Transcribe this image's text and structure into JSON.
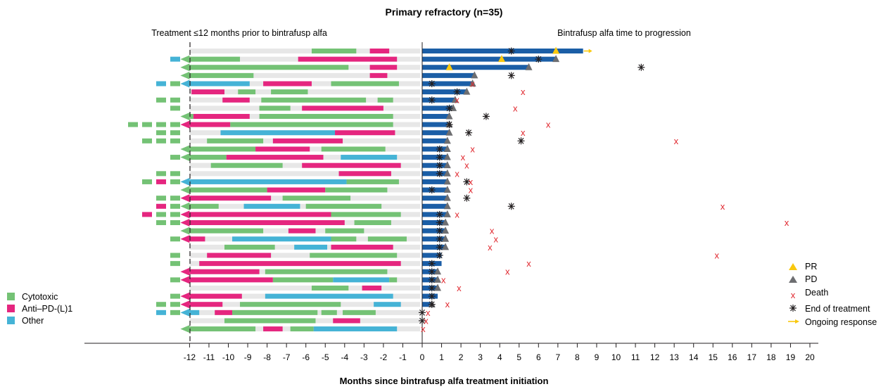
{
  "chart_data": {
    "type": "swimmer",
    "title": "Primary refractory (n=35)",
    "xlabel": "Months since bintrafusp alfa treatment initiation",
    "left_label": "Treatment ≤12 months prior to bintrafusp alfa",
    "right_label": "Bintrafusp alfa time to progression",
    "xlim": [
      -12,
      20
    ],
    "x_ticks": [
      "-12",
      "-11",
      "-10",
      "-9",
      "-8",
      "-7",
      "-6",
      "-5",
      "-4",
      "-3",
      "-2",
      "-1",
      "0",
      "1",
      "2",
      "3",
      "4",
      "5",
      "6",
      "7",
      "8",
      "9",
      "10",
      "11",
      "12",
      "13",
      "14",
      "15",
      "16",
      "17",
      "18",
      "19",
      "20"
    ],
    "colors": {
      "cytotoxic": "#74c275",
      "anti_pd": "#e5267f",
      "other": "#45b3d6",
      "bintrafusp": "#1b5ea6",
      "background_bar": "#e7e7e7",
      "pr": "#f9c80e",
      "pd": "#6d6e71",
      "death": "#e0262d",
      "end_of_treatment": "#231f20",
      "ongoing": "#f9c80e"
    },
    "legend": {
      "cytotoxic": "Cytotoxic",
      "anti_pd": "Anti–PD-(L)1",
      "other": "Other",
      "pr": "PR",
      "pd": "PD",
      "death": "Death",
      "eot": "End of treatment",
      "ongoing": "Ongoing response"
    },
    "patients": [
      {
        "prior": [
          [
            "C",
            -5.7,
            -3.4
          ],
          [
            "A",
            -2.7,
            -1.7
          ]
        ],
        "bg_start": null,
        "pre": [],
        "bf": 8.3,
        "pd": false,
        "pr": [
          6.9
        ],
        "eot": [
          4.6
        ],
        "death": null,
        "ongoing": true
      },
      {
        "prior": [
          [
            "C",
            -12,
            -9.4
          ],
          [
            "A",
            -6.4,
            -1.3
          ]
        ],
        "bg_start": -12,
        "pre": [
          "O"
        ],
        "bf": 6.9,
        "pd": true,
        "pr": [
          4.1
        ],
        "eot": [
          6.0
        ],
        "death": null,
        "ongoing": false
      },
      {
        "prior": [
          [
            "C",
            -12,
            -3.8
          ],
          [
            "A",
            -2.7,
            -1.3
          ]
        ],
        "bg_start": -12,
        "pre": [],
        "bf": 5.5,
        "pd": true,
        "pr": [
          1.4
        ],
        "eot": [
          11.3
        ],
        "death": null,
        "ongoing": false
      },
      {
        "prior": [
          [
            "C",
            -12,
            -8.7
          ],
          [
            "A",
            -2.7,
            -1.8
          ]
        ],
        "bg_start": -12,
        "pre": [],
        "bf": 2.7,
        "pd": true,
        "pr": [],
        "eot": [
          4.6
        ],
        "death": null,
        "ongoing": false
      },
      {
        "prior": [
          [
            "O",
            -12,
            -8.9
          ],
          [
            "A",
            -8.2,
            -5.7
          ],
          [
            "C",
            -4.7,
            -1.2
          ]
        ],
        "bg_start": -12,
        "pre": [
          "C",
          "O"
        ],
        "bf": 2.6,
        "pd": true,
        "pr": [],
        "eot": [
          0.5
        ],
        "death": 2.6,
        "ongoing": false
      },
      {
        "prior": [
          [
            "A",
            -11.9,
            -10.2
          ],
          [
            "C",
            -9.5,
            -8.6
          ],
          [
            "C",
            -7.8,
            -5.9
          ]
        ],
        "bg_start": -12,
        "pre": [],
        "bf": 2.3,
        "pd": true,
        "pr": [],
        "eot": [
          1.8
        ],
        "death": 5.2,
        "ongoing": false
      },
      {
        "prior": [
          [
            "A",
            -10.3,
            -8.9
          ],
          [
            "C",
            -8.3,
            -2.9
          ],
          [
            "C",
            -2.3,
            -1.5
          ]
        ],
        "bg_start": -12,
        "pre": [
          "C",
          "C"
        ],
        "bf": 1.7,
        "pd": true,
        "pr": [],
        "eot": [
          0.5
        ],
        "death": 1.8,
        "ongoing": false
      },
      {
        "prior": [
          [
            "C",
            -8.4,
            -6.8
          ],
          [
            "A",
            -6.2,
            -2.0
          ]
        ],
        "bg_start": -12,
        "pre": [
          "C"
        ],
        "bf": 1.6,
        "pd": true,
        "pr": [],
        "eot": [
          1.4
        ],
        "death": 4.8,
        "ongoing": false
      },
      {
        "prior": [
          [
            "C",
            -12,
            -11.8
          ],
          [
            "A",
            -11.8,
            -8.9
          ],
          [
            "C",
            -8.4,
            -1.5
          ]
        ],
        "bg_start": -12,
        "pre": [],
        "bf": 1.4,
        "pd": true,
        "pr": [],
        "eot": [
          3.3
        ],
        "death": null,
        "ongoing": false
      },
      {
        "prior": [
          [
            "A",
            -12,
            -9.9
          ],
          [
            "C",
            -9.9,
            -1.5
          ]
        ],
        "bg_start": -12,
        "pre": [
          "C",
          "C",
          "C",
          "C"
        ],
        "bf": 1.4,
        "pd": true,
        "pr": [],
        "eot": [
          1.4
        ],
        "death": 6.5,
        "ongoing": false
      },
      {
        "prior": [
          [
            "O",
            -10.4,
            -4.5
          ],
          [
            "A",
            -4.5,
            -1.4
          ]
        ],
        "bg_start": -12,
        "pre": [
          "C",
          "C"
        ],
        "bf": 1.4,
        "pd": true,
        "pr": [],
        "eot": [
          2.4
        ],
        "death": 5.2,
        "ongoing": false
      },
      {
        "prior": [
          [
            "C",
            -11.1,
            -8.2
          ],
          [
            "A",
            -7.7,
            -4.1
          ]
        ],
        "bg_start": -12,
        "pre": [
          "C",
          "C",
          "C"
        ],
        "bf": 1.3,
        "pd": true,
        "pr": [],
        "eot": [
          5.1
        ],
        "death": 13.1,
        "ongoing": false
      },
      {
        "prior": [
          [
            "C",
            -12,
            -8.6
          ],
          [
            "A",
            -8.6,
            -5.8
          ],
          [
            "C",
            -5.2,
            -1.9
          ]
        ],
        "bg_start": -12,
        "pre": [],
        "bf": 1.3,
        "pd": true,
        "pr": [],
        "eot": [
          0.9
        ],
        "death": 2.6,
        "ongoing": false
      },
      {
        "prior": [
          [
            "C",
            -12,
            -10.1
          ],
          [
            "A",
            -10.1,
            -5.1
          ],
          [
            "O",
            -4.2,
            -1.3
          ]
        ],
        "bg_start": -12,
        "pre": [
          "C"
        ],
        "bf": 1.3,
        "pd": true,
        "pr": [],
        "eot": [
          0.9
        ],
        "death": 2.1,
        "ongoing": false
      },
      {
        "prior": [
          [
            "C",
            -10.9,
            -7.2
          ],
          [
            "A",
            -6.2,
            -1.1
          ]
        ],
        "bg_start": -12,
        "pre": [],
        "bf": 1.3,
        "pd": true,
        "pr": [],
        "eot": [
          0.9
        ],
        "death": 2.3,
        "ongoing": false
      },
      {
        "prior": [
          [
            "A",
            -4.3,
            -1.6
          ]
        ],
        "bg_start": -12,
        "pre": [
          "C",
          "C"
        ],
        "bf": 1.3,
        "pd": true,
        "pr": [],
        "eot": [
          0.9
        ],
        "death": 1.8,
        "ongoing": false
      },
      {
        "prior": [
          [
            "O",
            -12,
            -3.9
          ],
          [
            "C",
            -3.9,
            -1.2
          ]
        ],
        "bg_start": -12,
        "pre": [
          "C",
          "A",
          "C"
        ],
        "bf": 1.3,
        "pd": true,
        "pr": [],
        "eot": [
          2.3
        ],
        "death": 2.5,
        "ongoing": false
      },
      {
        "prior": [
          [
            "C",
            -12,
            -8.0
          ],
          [
            "A",
            -8.0,
            -5.0
          ],
          [
            "C",
            -5.0,
            -1.8
          ]
        ],
        "bg_start": -12,
        "pre": [],
        "bf": 1.3,
        "pd": true,
        "pr": [],
        "eot": [
          0.5
        ],
        "death": 2.5,
        "ongoing": false
      },
      {
        "prior": [
          [
            "A",
            -12,
            -7.8
          ],
          [
            "C",
            -7.2,
            -3.7
          ]
        ],
        "bg_start": -12,
        "pre": [
          "C",
          "C"
        ],
        "bf": 1.3,
        "pd": true,
        "pr": [],
        "eot": [
          2.3
        ],
        "death": null,
        "ongoing": false
      },
      {
        "prior": [
          [
            "C",
            -12,
            -10.5
          ],
          [
            "O",
            -9.2,
            -6.3
          ],
          [
            "C",
            -6.0,
            -2.1
          ]
        ],
        "bg_start": -12,
        "pre": [
          "C",
          "A"
        ],
        "bf": 1.3,
        "pd": true,
        "pr": [],
        "eot": [
          4.6
        ],
        "death": 15.5,
        "ongoing": false
      },
      {
        "prior": [
          [
            "A",
            -12,
            -4.7
          ],
          [
            "C",
            -4.7,
            -1.1
          ]
        ],
        "bg_start": -12,
        "pre": [
          "C",
          "C",
          "A"
        ],
        "bf": 1.3,
        "pd": true,
        "pr": [],
        "eot": [
          0.9
        ],
        "death": 1.8,
        "ongoing": false
      },
      {
        "prior": [
          [
            "A",
            -12,
            -4.0
          ],
          [
            "C",
            -3.5,
            -1.6
          ]
        ],
        "bg_start": -12,
        "pre": [
          "C",
          "C"
        ],
        "bf": 1.2,
        "pd": true,
        "pr": [],
        "eot": [
          0.9
        ],
        "death": 18.8,
        "ongoing": false
      },
      {
        "prior": [
          [
            "C",
            -12,
            -8.2
          ],
          [
            "A",
            -6.9,
            -5.5
          ],
          [
            "C",
            -5.0,
            -3.0
          ]
        ],
        "bg_start": -12,
        "pre": [],
        "bf": 1.2,
        "pd": true,
        "pr": [],
        "eot": [
          0.9
        ],
        "death": 3.6,
        "ongoing": false
      },
      {
        "prior": [
          [
            "A",
            -12,
            -11.2
          ],
          [
            "O",
            -9.8,
            -4.7
          ],
          [
            "C",
            -4.7,
            -3.4
          ],
          [
            "C",
            -2.8,
            -0.8
          ]
        ],
        "bg_start": -12,
        "pre": [
          "C"
        ],
        "bf": 1.2,
        "pd": true,
        "pr": [],
        "eot": [
          0.9
        ],
        "death": 3.8,
        "ongoing": false
      },
      {
        "prior": [
          [
            "C",
            -10.2,
            -7.6
          ],
          [
            "O",
            -6.6,
            -4.9
          ],
          [
            "A",
            -4.7,
            -1.5
          ]
        ],
        "bg_start": -12,
        "pre": [],
        "bf": 1.2,
        "pd": true,
        "pr": [],
        "eot": [
          0.9
        ],
        "death": 3.5,
        "ongoing": false
      },
      {
        "prior": [
          [
            "A",
            -11.1,
            -7.8
          ],
          [
            "C",
            -5.8,
            -1.3
          ]
        ],
        "bg_start": -12,
        "pre": [
          "C"
        ],
        "bf": 1.0,
        "pd": false,
        "pr": [],
        "eot": [
          0.9
        ],
        "death": 15.2,
        "ongoing": false
      },
      {
        "prior": [
          [
            "A",
            -11.5,
            -1.1
          ]
        ],
        "bg_start": -12,
        "pre": [
          "C"
        ],
        "bf": 1.0,
        "pd": false,
        "pr": [],
        "eot": [
          0.5
        ],
        "death": 5.5,
        "ongoing": false
      },
      {
        "prior": [
          [
            "A",
            -12,
            -8.4
          ],
          [
            "C",
            -8.1,
            -1.8
          ]
        ],
        "bg_start": -12,
        "pre": [],
        "bf": 0.8,
        "pd": true,
        "pr": [],
        "eot": [
          0.5
        ],
        "death": 4.4,
        "ongoing": false
      },
      {
        "prior": [
          [
            "A",
            -12,
            -7.7
          ],
          [
            "C",
            -7.7,
            -4.6
          ],
          [
            "O",
            -4.6,
            -1.7
          ],
          [
            "C",
            -1.7,
            -1.3
          ]
        ],
        "bg_start": -12,
        "pre": [
          "C"
        ],
        "bf": 0.8,
        "pd": true,
        "pr": [],
        "eot": [
          0.5
        ],
        "death": 1.1,
        "ongoing": false
      },
      {
        "prior": [
          [
            "C",
            -5.7,
            -3.8
          ],
          [
            "A",
            -3.1,
            -2.1
          ]
        ],
        "bg_start": -12,
        "pre": [],
        "bf": 0.8,
        "pd": true,
        "pr": [],
        "eot": [
          0.5
        ],
        "death": 1.9,
        "ongoing": false
      },
      {
        "prior": [
          [
            "A",
            -12,
            -9.3
          ],
          [
            "O",
            -8.1,
            -1.5
          ]
        ],
        "bg_start": -12,
        "pre": [
          "C"
        ],
        "bf": 0.8,
        "pd": false,
        "pr": [],
        "eot": [
          0.5
        ],
        "death": null,
        "ongoing": false
      },
      {
        "prior": [
          [
            "A",
            -12,
            -10.3
          ],
          [
            "C",
            -9.4,
            -4.2
          ],
          [
            "O",
            -2.5,
            -1.1
          ]
        ],
        "bg_start": -12,
        "pre": [
          "C",
          "C"
        ],
        "bf": 0.5,
        "pd": true,
        "pr": [],
        "eot": [
          0.5
        ],
        "death": 1.3,
        "ongoing": false
      },
      {
        "prior": [
          [
            "O",
            -12,
            -11.5
          ],
          [
            "A",
            -10.7,
            -9.8
          ],
          [
            "C",
            -9.8,
            -5.4
          ],
          [
            "C",
            -5.2,
            -4.4
          ],
          [
            "C",
            -4.1,
            -2.4
          ]
        ],
        "bg_start": -12,
        "pre": [
          "C",
          "O"
        ],
        "bf": 0,
        "pd": false,
        "pr": [],
        "eot": [
          0
        ],
        "death": 0.3,
        "ongoing": false
      },
      {
        "prior": [
          [
            "C",
            -10.2,
            -5.5
          ],
          [
            "A",
            -4.6,
            -3.2
          ]
        ],
        "bg_start": -12,
        "pre": [],
        "bf": 0,
        "pd": false,
        "pr": [],
        "eot": [
          0
        ],
        "death": 0.2,
        "ongoing": false
      },
      {
        "prior": [
          [
            "C",
            -12,
            -8.6
          ],
          [
            "A",
            -8.2,
            -7.2
          ],
          [
            "C",
            -6.8,
            -5.6
          ],
          [
            "O",
            -5.6,
            -1.3
          ]
        ],
        "bg_start": -12,
        "pre": [],
        "bf": 0,
        "pd": false,
        "pr": [],
        "eot": [],
        "death": 0.05,
        "ongoing": false
      }
    ]
  }
}
